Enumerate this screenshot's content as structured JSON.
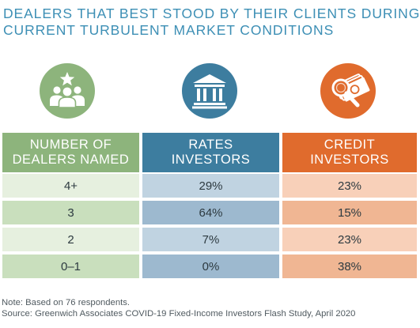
{
  "title": {
    "line1": "DEALERS THAT BEST STOOD BY THEIR CLIENTS DURING",
    "line2": "CURRENT TURBULENT MARKET CONDITIONS"
  },
  "icons": {
    "dealers": "people-with-star-icon",
    "rates": "bank-building-icon",
    "credit": "money-with-magnifier-icon"
  },
  "colors": {
    "title": "#3d8fb5",
    "dealers_header": "#8db47c",
    "rates_header": "#3d7d9f",
    "credit_header": "#e06b2d",
    "dealers_row_light": "#e6f0df",
    "dealers_row_dark": "#c9dfbd",
    "rates_row_light": "#c0d3e1",
    "rates_row_dark": "#9db9cf",
    "credit_row_light": "#f8d0b9",
    "credit_row_dark": "#f0b693"
  },
  "table": {
    "headers": [
      {
        "line1": "NUMBER OF",
        "line2": "DEALERS NAMED"
      },
      {
        "line1": "RATES",
        "line2": "INVESTORS"
      },
      {
        "line1": "CREDIT",
        "line2": "INVESTORS"
      }
    ],
    "rows": [
      {
        "dealers": "4+",
        "rates": "29%",
        "credit": "23%"
      },
      {
        "dealers": "3",
        "rates": "64%",
        "credit": "15%"
      },
      {
        "dealers": "2",
        "rates": "7%",
        "credit": "23%"
      },
      {
        "dealers": "0–1",
        "rates": "0%",
        "credit": "38%"
      }
    ]
  },
  "chart_data": {
    "type": "table",
    "title": "DEALERS THAT BEST STOOD BY THEIR CLIENTS DURING CURRENT TURBULENT MARKET CONDITIONS",
    "columns": [
      "NUMBER OF DEALERS NAMED",
      "RATES INVESTORS",
      "CREDIT INVESTORS"
    ],
    "categories": [
      "4+",
      "3",
      "2",
      "0–1"
    ],
    "series": [
      {
        "name": "RATES INVESTORS",
        "values": [
          29,
          64,
          7,
          0
        ]
      },
      {
        "name": "CREDIT INVESTORS",
        "values": [
          23,
          15,
          23,
          38
        ]
      }
    ],
    "unit": "%"
  },
  "notes": {
    "note": "Note: Based on 76 respondents.",
    "source": "Source: Greenwich Associates COVID-19 Fixed-Income Investors Flash Study, April 2020"
  }
}
